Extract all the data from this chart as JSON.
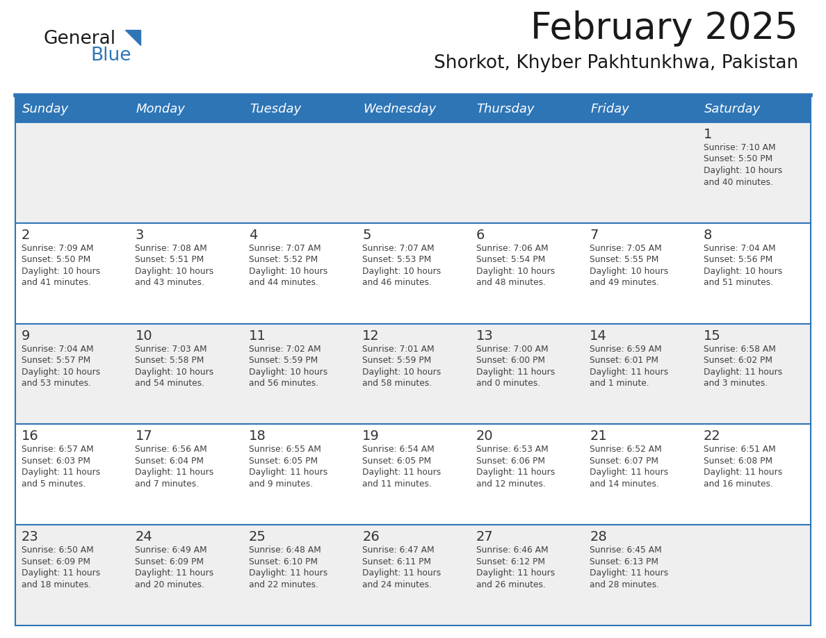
{
  "title": "February 2025",
  "subtitle": "Shorkot, Khyber Pakhtunkhwa, Pakistan",
  "days_of_week": [
    "Sunday",
    "Monday",
    "Tuesday",
    "Wednesday",
    "Thursday",
    "Friday",
    "Saturday"
  ],
  "header_bg": "#2E75B6",
  "header_text_color": "#FFFFFF",
  "row_bg_light": "#EFEFEF",
  "row_bg_white": "#FFFFFF",
  "separator_color": "#2E75B6",
  "text_color": "#404040",
  "day_num_color": "#333333",
  "logo_general_color": "#1a1a1a",
  "logo_blue_color": "#2E75B6",
  "calendar_data": [
    [
      null,
      null,
      null,
      null,
      null,
      null,
      {
        "day": "1",
        "sunrise": "7:10 AM",
        "sunset": "5:50 PM",
        "daylight_line1": "Daylight: 10 hours",
        "daylight_line2": "and 40 minutes."
      }
    ],
    [
      {
        "day": "2",
        "sunrise": "7:09 AM",
        "sunset": "5:50 PM",
        "daylight_line1": "Daylight: 10 hours",
        "daylight_line2": "and 41 minutes."
      },
      {
        "day": "3",
        "sunrise": "7:08 AM",
        "sunset": "5:51 PM",
        "daylight_line1": "Daylight: 10 hours",
        "daylight_line2": "and 43 minutes."
      },
      {
        "day": "4",
        "sunrise": "7:07 AM",
        "sunset": "5:52 PM",
        "daylight_line1": "Daylight: 10 hours",
        "daylight_line2": "and 44 minutes."
      },
      {
        "day": "5",
        "sunrise": "7:07 AM",
        "sunset": "5:53 PM",
        "daylight_line1": "Daylight: 10 hours",
        "daylight_line2": "and 46 minutes."
      },
      {
        "day": "6",
        "sunrise": "7:06 AM",
        "sunset": "5:54 PM",
        "daylight_line1": "Daylight: 10 hours",
        "daylight_line2": "and 48 minutes."
      },
      {
        "day": "7",
        "sunrise": "7:05 AM",
        "sunset": "5:55 PM",
        "daylight_line1": "Daylight: 10 hours",
        "daylight_line2": "and 49 minutes."
      },
      {
        "day": "8",
        "sunrise": "7:04 AM",
        "sunset": "5:56 PM",
        "daylight_line1": "Daylight: 10 hours",
        "daylight_line2": "and 51 minutes."
      }
    ],
    [
      {
        "day": "9",
        "sunrise": "7:04 AM",
        "sunset": "5:57 PM",
        "daylight_line1": "Daylight: 10 hours",
        "daylight_line2": "and 53 minutes."
      },
      {
        "day": "10",
        "sunrise": "7:03 AM",
        "sunset": "5:58 PM",
        "daylight_line1": "Daylight: 10 hours",
        "daylight_line2": "and 54 minutes."
      },
      {
        "day": "11",
        "sunrise": "7:02 AM",
        "sunset": "5:59 PM",
        "daylight_line1": "Daylight: 10 hours",
        "daylight_line2": "and 56 minutes."
      },
      {
        "day": "12",
        "sunrise": "7:01 AM",
        "sunset": "5:59 PM",
        "daylight_line1": "Daylight: 10 hours",
        "daylight_line2": "and 58 minutes."
      },
      {
        "day": "13",
        "sunrise": "7:00 AM",
        "sunset": "6:00 PM",
        "daylight_line1": "Daylight: 11 hours",
        "daylight_line2": "and 0 minutes."
      },
      {
        "day": "14",
        "sunrise": "6:59 AM",
        "sunset": "6:01 PM",
        "daylight_line1": "Daylight: 11 hours",
        "daylight_line2": "and 1 minute."
      },
      {
        "day": "15",
        "sunrise": "6:58 AM",
        "sunset": "6:02 PM",
        "daylight_line1": "Daylight: 11 hours",
        "daylight_line2": "and 3 minutes."
      }
    ],
    [
      {
        "day": "16",
        "sunrise": "6:57 AM",
        "sunset": "6:03 PM",
        "daylight_line1": "Daylight: 11 hours",
        "daylight_line2": "and 5 minutes."
      },
      {
        "day": "17",
        "sunrise": "6:56 AM",
        "sunset": "6:04 PM",
        "daylight_line1": "Daylight: 11 hours",
        "daylight_line2": "and 7 minutes."
      },
      {
        "day": "18",
        "sunrise": "6:55 AM",
        "sunset": "6:05 PM",
        "daylight_line1": "Daylight: 11 hours",
        "daylight_line2": "and 9 minutes."
      },
      {
        "day": "19",
        "sunrise": "6:54 AM",
        "sunset": "6:05 PM",
        "daylight_line1": "Daylight: 11 hours",
        "daylight_line2": "and 11 minutes."
      },
      {
        "day": "20",
        "sunrise": "6:53 AM",
        "sunset": "6:06 PM",
        "daylight_line1": "Daylight: 11 hours",
        "daylight_line2": "and 12 minutes."
      },
      {
        "day": "21",
        "sunrise": "6:52 AM",
        "sunset": "6:07 PM",
        "daylight_line1": "Daylight: 11 hours",
        "daylight_line2": "and 14 minutes."
      },
      {
        "day": "22",
        "sunrise": "6:51 AM",
        "sunset": "6:08 PM",
        "daylight_line1": "Daylight: 11 hours",
        "daylight_line2": "and 16 minutes."
      }
    ],
    [
      {
        "day": "23",
        "sunrise": "6:50 AM",
        "sunset": "6:09 PM",
        "daylight_line1": "Daylight: 11 hours",
        "daylight_line2": "and 18 minutes."
      },
      {
        "day": "24",
        "sunrise": "6:49 AM",
        "sunset": "6:09 PM",
        "daylight_line1": "Daylight: 11 hours",
        "daylight_line2": "and 20 minutes."
      },
      {
        "day": "25",
        "sunrise": "6:48 AM",
        "sunset": "6:10 PM",
        "daylight_line1": "Daylight: 11 hours",
        "daylight_line2": "and 22 minutes."
      },
      {
        "day": "26",
        "sunrise": "6:47 AM",
        "sunset": "6:11 PM",
        "daylight_line1": "Daylight: 11 hours",
        "daylight_line2": "and 24 minutes."
      },
      {
        "day": "27",
        "sunrise": "6:46 AM",
        "sunset": "6:12 PM",
        "daylight_line1": "Daylight: 11 hours",
        "daylight_line2": "and 26 minutes."
      },
      {
        "day": "28",
        "sunrise": "6:45 AM",
        "sunset": "6:13 PM",
        "daylight_line1": "Daylight: 11 hours",
        "daylight_line2": "and 28 minutes."
      },
      null
    ]
  ]
}
